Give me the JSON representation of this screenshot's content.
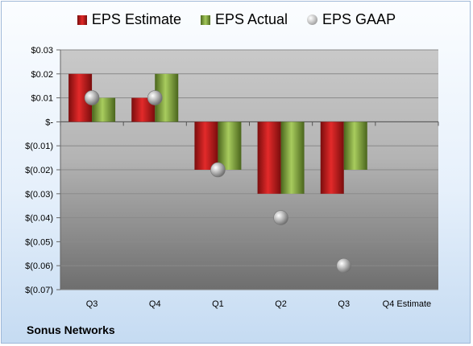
{
  "company": "Sonus Networks",
  "chart_data": {
    "type": "bar",
    "categories": [
      "Q3",
      "Q4",
      "Q1",
      "Q2",
      "Q3",
      "Q4 Estimate"
    ],
    "series": [
      {
        "name": "EPS Estimate",
        "color": "#d42020",
        "values": [
          0.02,
          0.01,
          -0.02,
          -0.03,
          -0.03,
          null
        ]
      },
      {
        "name": "EPS Actual",
        "color": "#8fb543",
        "values": [
          0.01,
          0.02,
          -0.02,
          -0.03,
          -0.02,
          null
        ]
      },
      {
        "name": "EPS GAAP",
        "color": "#b0b0b0",
        "marker": "sphere",
        "values": [
          0.01,
          0.01,
          -0.02,
          -0.04,
          -0.06,
          null
        ]
      }
    ],
    "yticks": [
      0.03,
      0.02,
      0.01,
      0,
      -0.01,
      -0.02,
      -0.03,
      -0.04,
      -0.05,
      -0.06,
      -0.07
    ],
    "ytick_labels": [
      "$0.03",
      "$0.02",
      "$0.01",
      "$-",
      "$(0.01)",
      "$(0.02)",
      "$(0.03)",
      "$(0.04)",
      "$(0.05)",
      "$(0.06)",
      "$(0.07)"
    ],
    "ylim": [
      -0.07,
      0.03
    ],
    "grid": true,
    "legend": "top"
  }
}
